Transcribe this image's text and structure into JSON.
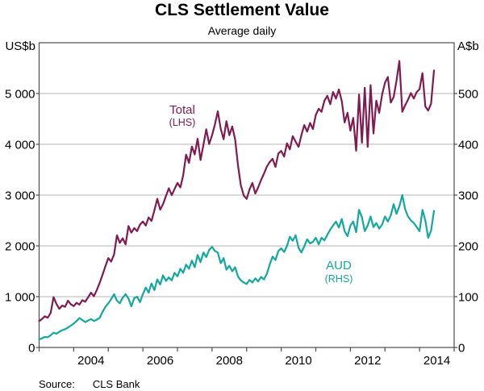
{
  "header": {
    "title": "CLS Settlement Value",
    "subtitle": "Average daily"
  },
  "footer": {
    "source_label": "Source:",
    "source_value": "CLS Bank"
  },
  "chart_data": {
    "type": "line",
    "title": "CLS Settlement Value",
    "subtitle": "Average daily",
    "source": "CLS Bank",
    "frequency": "monthly",
    "x_range": {
      "start_year": 2003,
      "start_month": 1,
      "axis_end_year": 2015
    },
    "x_axis": {
      "tick_years": [
        2003,
        2004,
        2005,
        2006,
        2007,
        2008,
        2009,
        2010,
        2011,
        2012,
        2013,
        2014,
        2015
      ],
      "labels": [
        "2004",
        "2006",
        "2008",
        "2010",
        "2012",
        "2014"
      ],
      "label_years": [
        2004,
        2006,
        2008,
        2010,
        2012,
        2014
      ]
    },
    "left_axis": {
      "unit": "US$b",
      "min": 0,
      "max": 6000,
      "tick_values": [
        0,
        1000,
        2000,
        3000,
        4000,
        5000
      ],
      "tick_labels": [
        "0",
        "1 000",
        "2 000",
        "3 000",
        "4 000",
        "5 000"
      ]
    },
    "right_axis": {
      "unit": "A$b",
      "min": 0,
      "max": 600,
      "tick_values": [
        0,
        100,
        200,
        300,
        400,
        500
      ],
      "tick_labels": [
        "0",
        "100",
        "200",
        "300",
        "400",
        "500"
      ]
    },
    "grid": true,
    "colors": {
      "total": "#811a50",
      "aud": "#12a8a0",
      "gridline": "#b5b5b5",
      "frame": "#4d4d4d",
      "text": "#000000"
    },
    "series": [
      {
        "id": "total",
        "label": "Total",
        "sublabel": "(LHS)",
        "axis": "left",
        "color": "#811a50",
        "monthly_values": [
          520,
          560,
          615,
          585,
          680,
          990,
          860,
          760,
          825,
          800,
          920,
          850,
          815,
          880,
          845,
          930,
          900,
          985,
          1080,
          1010,
          1130,
          1270,
          1430,
          1600,
          1760,
          1690,
          1830,
          2210,
          2060,
          2150,
          2030,
          2390,
          2260,
          2350,
          2290,
          2420,
          2480,
          2400,
          2560,
          2490,
          2700,
          2925,
          2715,
          2820,
          2980,
          3135,
          3000,
          3120,
          3240,
          3150,
          3390,
          3795,
          3635,
          3955,
          3800,
          4110,
          3690,
          3990,
          4295,
          4005,
          4180,
          4390,
          4650,
          4310,
          4100,
          4455,
          4180,
          4350,
          4095,
          3590,
          3190,
          2990,
          2925,
          3110,
          3240,
          3030,
          3150,
          3295,
          3420,
          3560,
          3650,
          3715,
          3555,
          3820,
          3870,
          3760,
          4020,
          3900,
          4160,
          4050,
          3950,
          4180,
          4380,
          4250,
          4420,
          4300,
          4580,
          4700,
          4640,
          4860,
          4955,
          4790,
          5030,
          4900,
          5080,
          4850,
          4430,
          4620,
          4270,
          4520,
          3875,
          4980,
          4030,
          5115,
          3950,
          5165,
          4215,
          4860,
          4620,
          4980,
          5215,
          5325,
          4820,
          4930,
          5250,
          5640,
          4640,
          4770,
          4880,
          5010,
          4900,
          5030,
          5085,
          5400,
          4745,
          4665,
          4800,
          5455
        ]
      },
      {
        "id": "aud",
        "label": "AUD",
        "sublabel": "(RHS)",
        "axis": "right",
        "color": "#12a8a0",
        "monthly_values": [
          16,
          18,
          21,
          20,
          24,
          29,
          27,
          31,
          34,
          36,
          39,
          43,
          47,
          52,
          58,
          54,
          50,
          53,
          56,
          52,
          55,
          58,
          70,
          80,
          87,
          95,
          105,
          92,
          87,
          98,
          105,
          96,
          81,
          97,
          100,
          89,
          105,
          118,
          108,
          126,
          113,
          134,
          124,
          142,
          131,
          138,
          132,
          147,
          140,
          155,
          147,
          163,
          155,
          171,
          158,
          182,
          168,
          187,
          178,
          192,
          198,
          190,
          187,
          166,
          176,
          153,
          161,
          150,
          158,
          140,
          132,
          128,
          125,
          133,
          128,
          136,
          130,
          139,
          134,
          145,
          163,
          179,
          172,
          190,
          195,
          188,
          200,
          218,
          210,
          221,
          196,
          187,
          199,
          213,
          205,
          208,
          216,
          203,
          216,
          211,
          222,
          232,
          240,
          248,
          236,
          253,
          229,
          219,
          240,
          248,
          227,
          271,
          256,
          229,
          240,
          258,
          237,
          245,
          234,
          242,
          258,
          248,
          260,
          282,
          263,
          278,
          300,
          272,
          258,
          250,
          245,
          237,
          229,
          271,
          250,
          216,
          230,
          269
        ]
      }
    ]
  },
  "labels": {
    "unit_left": "US$b",
    "unit_right": "A$b",
    "total": "Total",
    "total_sub": "(LHS)",
    "aud": "AUD",
    "aud_sub": "(RHS)"
  }
}
